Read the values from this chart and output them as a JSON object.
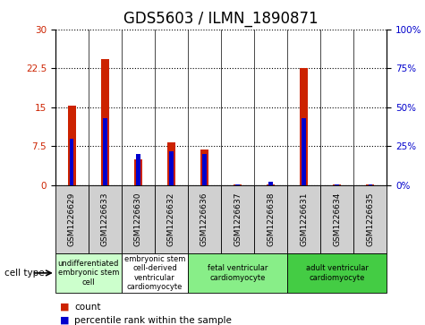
{
  "title": "GDS5603 / ILMN_1890871",
  "samples": [
    "GSM1226629",
    "GSM1226633",
    "GSM1226630",
    "GSM1226632",
    "GSM1226636",
    "GSM1226637",
    "GSM1226638",
    "GSM1226631",
    "GSM1226634",
    "GSM1226635"
  ],
  "counts": [
    15.3,
    24.2,
    5.0,
    8.3,
    6.8,
    0.1,
    0.1,
    22.6,
    0.1,
    0.1
  ],
  "percentiles": [
    30,
    43,
    20,
    22,
    20,
    0.3,
    2.0,
    43,
    0.3,
    0.3
  ],
  "ylim_left": [
    0,
    30
  ],
  "ylim_right": [
    0,
    100
  ],
  "yticks_left": [
    0,
    7.5,
    15,
    22.5,
    30
  ],
  "yticks_right": [
    0,
    25,
    50,
    75,
    100
  ],
  "ytick_labels_left": [
    "0",
    "7.5",
    "15",
    "22.5",
    "30"
  ],
  "ytick_labels_right": [
    "0%",
    "25%",
    "50%",
    "75%",
    "100%"
  ],
  "bar_color_count": "#cc2200",
  "bar_color_percentile": "#0000cc",
  "cell_type_groups": [
    {
      "label": "undifferentiated\nembryonic stem\ncell",
      "span": [
        0,
        2
      ],
      "color": "#ccffcc"
    },
    {
      "label": "embryonic stem\ncell-derived\nventricular\ncardiomyocyte",
      "span": [
        2,
        4
      ],
      "color": "#ffffff"
    },
    {
      "label": "fetal ventricular\ncardiomyocyte",
      "span": [
        4,
        7
      ],
      "color": "#88ee88"
    },
    {
      "label": "adult ventricular\ncardiomyocyte",
      "span": [
        7,
        10
      ],
      "color": "#44cc44"
    }
  ],
  "legend_count_label": "count",
  "legend_percentile_label": "percentile rank within the sample",
  "cell_type_label": "cell type",
  "title_fontsize": 12,
  "tick_fontsize": 7.5,
  "label_box_color": "#d0d0d0"
}
